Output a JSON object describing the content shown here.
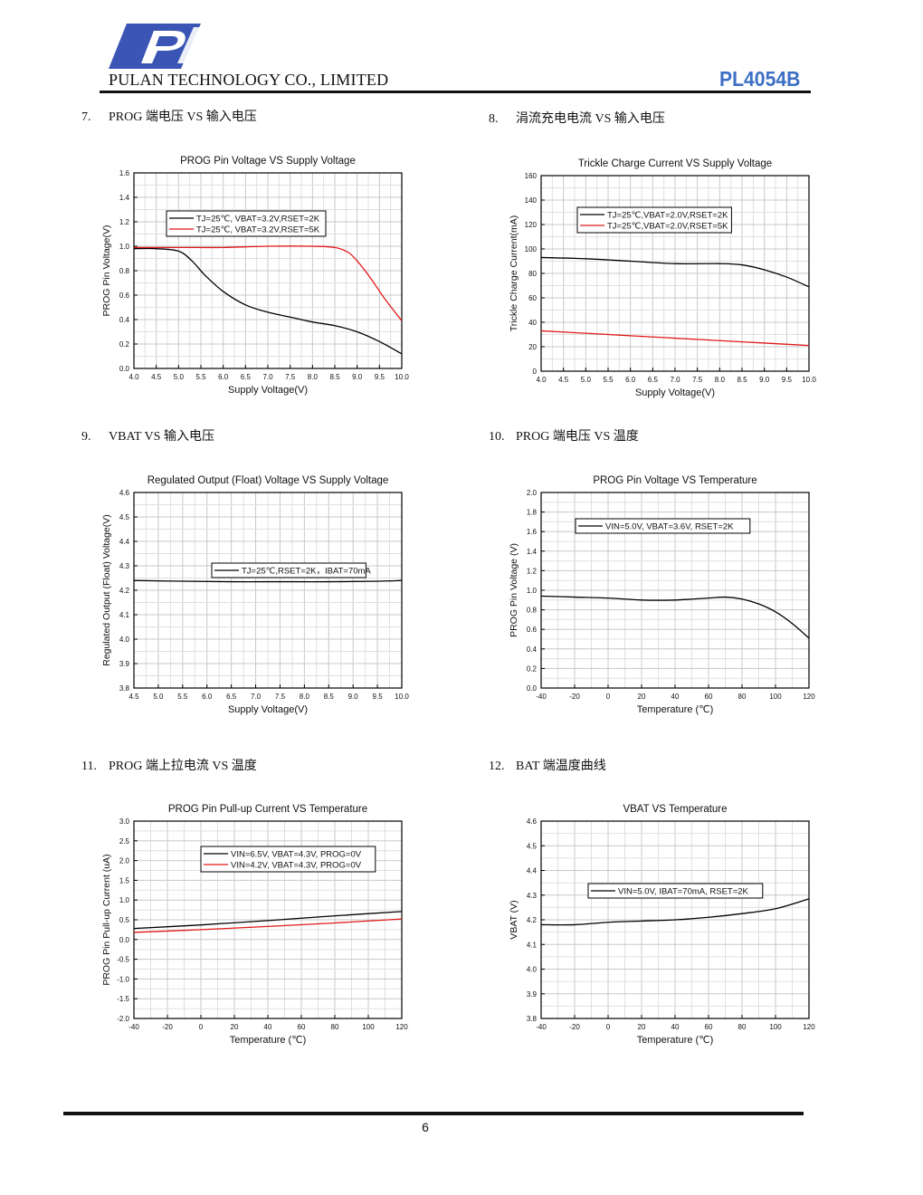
{
  "header": {
    "company": "PULAN TECHNOLOGY CO., LIMITED",
    "model": "PL4054B",
    "logo_icon": "pulan-logo-icon"
  },
  "sections": [
    {
      "num": "7.",
      "title": "PROG 端电压  VS  输入电压"
    },
    {
      "num": "8.",
      "title": "涓流充电电流 VS  输入电压"
    },
    {
      "num": "9.",
      "title": "VBAT VS  输入电压"
    },
    {
      "num": "10.",
      "title": "PROG 端电压  VS  温度"
    },
    {
      "num": "11.",
      "title": "PROG 端上拉电流  VS  温度"
    },
    {
      "num": "12.",
      "title": "BAT 端温度曲线"
    }
  ],
  "footer": {
    "page_number": "6"
  },
  "chart_data": [
    {
      "type": "line",
      "title": "PROG Pin Voltage VS Supply Voltage",
      "xlabel": "Supply Voltage(V)",
      "ylabel": "PROG Pin Voltage(V)",
      "xlim": [
        4.0,
        10.0
      ],
      "ylim": [
        0.0,
        1.6
      ],
      "xticks": [
        "4.0",
        "4.5",
        "5.0",
        "5.5",
        "6.0",
        "6.5",
        "7.0",
        "7.5",
        "8.0",
        "8.5",
        "9.0",
        "9.5",
        "10.0"
      ],
      "yticks": [
        "0.0",
        "0.2",
        "0.4",
        "0.6",
        "0.8",
        "1.0",
        "1.2",
        "1.4",
        "1.6"
      ],
      "grid": true,
      "legend": "top-center",
      "series": [
        {
          "name": "TJ=25℃, VBAT=3.2V,RSET=2K",
          "color": "#000000",
          "x": [
            4.0,
            4.5,
            5.0,
            5.3,
            5.6,
            6.0,
            6.5,
            7.0,
            7.5,
            8.0,
            8.5,
            9.0,
            9.5,
            10.0
          ],
          "y": [
            0.98,
            0.98,
            0.96,
            0.88,
            0.76,
            0.63,
            0.52,
            0.46,
            0.42,
            0.38,
            0.35,
            0.3,
            0.22,
            0.12
          ]
        },
        {
          "name": "TJ=25℃, VBAT=3.2V,RSET=5K",
          "color": "#e01818",
          "x": [
            4.0,
            5.0,
            6.0,
            7.0,
            8.0,
            8.5,
            8.8,
            9.0,
            9.3,
            9.6,
            10.0
          ],
          "y": [
            0.99,
            0.99,
            0.99,
            1.0,
            1.0,
            0.99,
            0.95,
            0.88,
            0.74,
            0.58,
            0.39
          ]
        }
      ]
    },
    {
      "type": "line",
      "title": "Trickle Charge Current VS Supply Voltage",
      "xlabel": "Supply Voltage(V)",
      "ylabel": "Trickle Charge Current(mA)",
      "xlim": [
        4.0,
        10.0
      ],
      "ylim": [
        0,
        160
      ],
      "xticks": [
        "4.0",
        "4.5",
        "5.0",
        "5.5",
        "6.0",
        "6.5",
        "7.0",
        "7.5",
        "8.0",
        "8.5",
        "9.0",
        "9.5",
        "10.0"
      ],
      "yticks": [
        "0",
        "20",
        "40",
        "60",
        "80",
        "100",
        "120",
        "140",
        "160"
      ],
      "grid": true,
      "legend": "top-center",
      "series": [
        {
          "name": "TJ=25℃,VBAT=2.0V,RSET=2K",
          "color": "#000000",
          "x": [
            4.0,
            5.0,
            6.0,
            7.0,
            8.0,
            8.5,
            9.0,
            9.5,
            10.0
          ],
          "y": [
            93,
            92,
            90,
            88,
            88,
            87,
            83,
            77,
            69
          ]
        },
        {
          "name": "TJ=25℃,VBAT=2.0V,RSET=5K",
          "color": "#e01818",
          "x": [
            4.0,
            5.0,
            6.0,
            7.0,
            8.0,
            9.0,
            10.0
          ],
          "y": [
            33,
            31,
            29,
            27,
            25,
            23,
            21
          ]
        }
      ]
    },
    {
      "type": "line",
      "title": "Regulated Output (Float) Voltage VS Supply Voltage",
      "xlabel": "Supply Voltage(V)",
      "ylabel": "Regulated Output (Float) Voltage(V)",
      "xlim": [
        4.5,
        10.0
      ],
      "ylim": [
        3.8,
        4.6
      ],
      "xticks": [
        "4.5",
        "5.0",
        "5.5",
        "6.0",
        "6.5",
        "7.0",
        "7.5",
        "8.0",
        "8.5",
        "9.0",
        "9.5",
        "10.0"
      ],
      "yticks": [
        "3.8",
        "3.9",
        "4.0",
        "4.1",
        "4.2",
        "4.3",
        "4.4",
        "4.5",
        "4.6"
      ],
      "grid": true,
      "legend": "center",
      "series": [
        {
          "name": "TJ=25℃,RSET=2K，IBAT=70mA",
          "color": "#000000",
          "x": [
            4.5,
            5.5,
            6.5,
            7.5,
            8.5,
            9.5,
            10.0
          ],
          "y": [
            4.24,
            4.237,
            4.235,
            4.235,
            4.235,
            4.237,
            4.24
          ]
        }
      ]
    },
    {
      "type": "line",
      "title": "PROG Pin Voltage VS Temperature",
      "xlabel": "Temperature (℃)",
      "ylabel": "PROG Pin Voltage (V)",
      "xlim": [
        -40,
        120
      ],
      "ylim": [
        0.0,
        2.0
      ],
      "xticks": [
        "-40",
        "-20",
        "0",
        "20",
        "40",
        "60",
        "80",
        "100",
        "120"
      ],
      "yticks": [
        "0.0",
        "0.2",
        "0.4",
        "0.6",
        "0.8",
        "1.0",
        "1.2",
        "1.4",
        "1.6",
        "1.8",
        "2.0"
      ],
      "grid": true,
      "legend": "top-right",
      "series": [
        {
          "name": "VIN=5.0V, VBAT=3.6V, RSET=2K",
          "color": "#000000",
          "x": [
            -40,
            -20,
            0,
            20,
            40,
            60,
            70,
            80,
            90,
            100,
            110,
            120
          ],
          "y": [
            0.94,
            0.93,
            0.92,
            0.9,
            0.9,
            0.92,
            0.93,
            0.91,
            0.86,
            0.78,
            0.66,
            0.51
          ]
        }
      ]
    },
    {
      "type": "line",
      "title": "PROG Pin Pull-up Current VS Temperature",
      "xlabel": "Temperature (℃)",
      "ylabel": "PROG Pin Pull-up Current (uA)",
      "xlim": [
        -40,
        120
      ],
      "ylim": [
        -2.0,
        3.0
      ],
      "xticks": [
        "-40",
        "-20",
        "0",
        "20",
        "40",
        "60",
        "80",
        "100",
        "120"
      ],
      "yticks": [
        "-2.0",
        "-1.5",
        "-1.0",
        "-0.5",
        "0.0",
        "0.5",
        "1.0",
        "1.5",
        "2.0",
        "2.5",
        "3.0"
      ],
      "grid": true,
      "legend": "top-right",
      "series": [
        {
          "name": "VIN=6.5V, VBAT=4.3V, PROG=0V",
          "color": "#000000",
          "x": [
            -40,
            0,
            40,
            80,
            120
          ],
          "y": [
            0.28,
            0.37,
            0.48,
            0.6,
            0.71
          ]
        },
        {
          "name": "VIN=4.2V, VBAT=4.3V, PROG=0V",
          "color": "#e01818",
          "x": [
            -40,
            0,
            40,
            80,
            120
          ],
          "y": [
            0.18,
            0.25,
            0.33,
            0.42,
            0.52
          ]
        }
      ]
    },
    {
      "type": "line",
      "title": "VBAT VS Temperature",
      "xlabel": "Temperature (℃)",
      "ylabel": "VBAT (V)",
      "xlim": [
        -40,
        120
      ],
      "ylim": [
        3.8,
        4.6
      ],
      "xticks": [
        "-40",
        "-20",
        "0",
        "20",
        "40",
        "60",
        "80",
        "100",
        "120"
      ],
      "yticks": [
        "3.8",
        "3.9",
        "4.0",
        "4.1",
        "4.2",
        "4.3",
        "4.4",
        "4.5",
        "4.6"
      ],
      "grid": true,
      "legend": "top-right",
      "series": [
        {
          "name": "VIN=5.0V, IBAT=70mA, RSET=2K",
          "color": "#000000",
          "x": [
            -40,
            -20,
            0,
            20,
            40,
            60,
            80,
            100,
            120
          ],
          "y": [
            4.18,
            4.18,
            4.19,
            4.195,
            4.2,
            4.21,
            4.225,
            4.245,
            4.285
          ]
        }
      ]
    }
  ]
}
